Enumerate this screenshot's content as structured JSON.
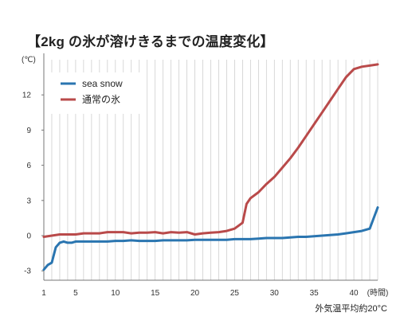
{
  "title": "【2kg の氷が溶けきるまでの温度変化】",
  "footnote": "外気温平均約20°C",
  "chart_data": {
    "type": "line",
    "title": "【2kg の氷が溶けきるまでの温度変化】",
    "xlabel": "(時間)",
    "ylabel": "(℃)",
    "xlim": [
      1,
      43
    ],
    "ylim": [
      -3,
      15
    ],
    "xticks": [
      1,
      5,
      10,
      15,
      20,
      25,
      30,
      35,
      40
    ],
    "xtick_labels": [
      "1",
      "5",
      "10",
      "15",
      "20",
      "25",
      "30",
      "35",
      "40"
    ],
    "yticks": [
      -3,
      0,
      3,
      6,
      9,
      12
    ],
    "ytick_labels": [
      "-3",
      "0",
      "3",
      "6",
      "9",
      "12"
    ],
    "grid": "vertical",
    "legend": "top-left",
    "series": [
      {
        "name": "sea snow",
        "color": "#2a75b0",
        "x": [
          1,
          1.5,
          2,
          2.5,
          3,
          3.5,
          4,
          4.5,
          5,
          6,
          7,
          8,
          9,
          10,
          11,
          12,
          13,
          14,
          15,
          16,
          17,
          18,
          19,
          20,
          21,
          22,
          23,
          24,
          25,
          26,
          27,
          28,
          29,
          30,
          31,
          32,
          33,
          34,
          35,
          36,
          37,
          38,
          39,
          40,
          41,
          42,
          42.5,
          43
        ],
        "y": [
          -2.9,
          -2.5,
          -2.3,
          -1.0,
          -0.6,
          -0.5,
          -0.6,
          -0.6,
          -0.5,
          -0.5,
          -0.5,
          -0.5,
          -0.5,
          -0.45,
          -0.45,
          -0.4,
          -0.45,
          -0.45,
          -0.45,
          -0.4,
          -0.4,
          -0.4,
          -0.4,
          -0.35,
          -0.35,
          -0.35,
          -0.35,
          -0.35,
          -0.3,
          -0.3,
          -0.3,
          -0.25,
          -0.2,
          -0.2,
          -0.2,
          -0.15,
          -0.1,
          -0.1,
          -0.05,
          0.0,
          0.05,
          0.1,
          0.2,
          0.3,
          0.4,
          0.6,
          1.5,
          2.4
        ]
      },
      {
        "name": "通常の氷",
        "color": "#b94a4a",
        "x": [
          1,
          2,
          3,
          4,
          5,
          6,
          7,
          8,
          9,
          10,
          11,
          12,
          13,
          14,
          15,
          16,
          17,
          18,
          19,
          20,
          21,
          22,
          23,
          24,
          25,
          26,
          26.5,
          27,
          28,
          29,
          30,
          31,
          32,
          33,
          34,
          35,
          36,
          37,
          38,
          39,
          40,
          41,
          42,
          43
        ],
        "y": [
          -0.1,
          0.0,
          0.1,
          0.1,
          0.1,
          0.2,
          0.2,
          0.2,
          0.3,
          0.3,
          0.3,
          0.2,
          0.25,
          0.25,
          0.3,
          0.2,
          0.3,
          0.25,
          0.3,
          0.1,
          0.2,
          0.25,
          0.3,
          0.4,
          0.6,
          1.1,
          2.7,
          3.2,
          3.7,
          4.4,
          5.0,
          5.8,
          6.6,
          7.5,
          8.5,
          9.5,
          10.5,
          11.5,
          12.5,
          13.5,
          14.2,
          14.4,
          14.5,
          14.6
        ]
      }
    ]
  }
}
